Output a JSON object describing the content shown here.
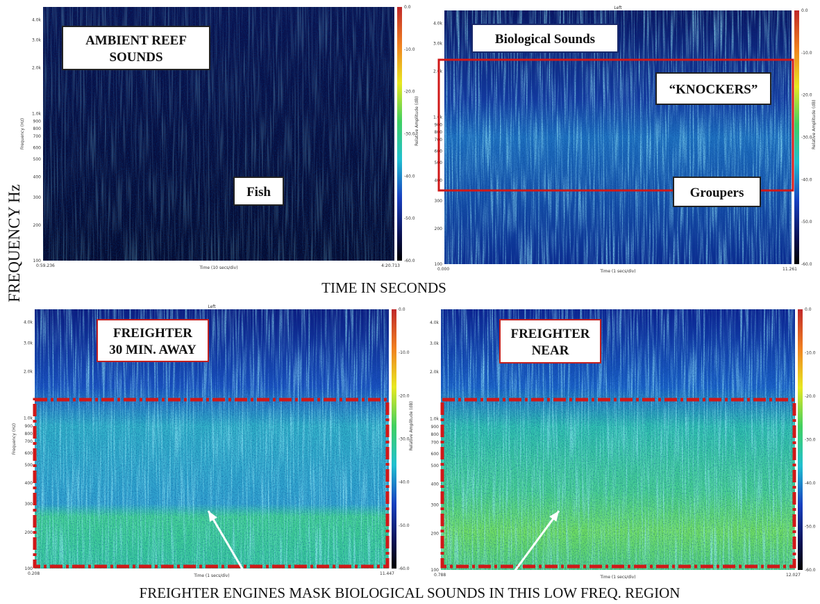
{
  "y_axis_label": "FREQUENCY  Hz",
  "middle_label": "TIME IN SECONDS",
  "bottom_label": "FREIGHTER ENGINES MASK BIOLOGICAL  SOUNDS IN THIS LOW FREQ. REGION",
  "panels": [
    {
      "frequency_axis_title": "Frequency (Hz)",
      "frequency_ticks": [
        "4.0k",
        "3.0k",
        "2.0k",
        "1.0k",
        "900",
        "800",
        "700",
        "600",
        "500",
        "400",
        "300",
        "200",
        "100"
      ],
      "time_axis_title": "Time (10 secs/div)",
      "time_start": "0:59.236",
      "time_end": "4:20.713",
      "amplitude_axis_title": "Relative Amplitude (dB)",
      "amplitude_ticks": [
        "0.0",
        "-10.0",
        "-20.0",
        "-30.0",
        "-40.0",
        "-50.0",
        "-60.0"
      ],
      "annotations": [
        {
          "lines": [
            "AMBIENT REEF",
            "SOUNDS"
          ]
        },
        {
          "lines": [
            "Fish"
          ]
        }
      ]
    },
    {
      "header": "Left",
      "frequency_ticks": [
        "4.0k",
        "3.0k",
        "2.0k",
        "1.0k",
        "900",
        "800",
        "700",
        "600",
        "500",
        "400",
        "300",
        "200",
        "100"
      ],
      "time_axis_title": "Time (1 secs/div)",
      "time_start": "0.000",
      "time_end": "11.261",
      "amplitude_axis_title": "Relative Amplitude (dB)",
      "amplitude_ticks": [
        "0.0",
        "-10.0",
        "-20.0",
        "-30.0",
        "-40.0",
        "-50.0",
        "-60.0"
      ],
      "annotations": [
        {
          "lines": [
            "Biological Sounds"
          ]
        },
        {
          "lines": [
            "“KNOCKERS”"
          ]
        },
        {
          "lines": [
            "Groupers"
          ]
        }
      ]
    },
    {
      "header": "Left",
      "frequency_axis_title": "Frequency (Hz)",
      "frequency_ticks": [
        "4.0k",
        "3.0k",
        "2.0k",
        "1.0k",
        "900",
        "800",
        "700",
        "600",
        "500",
        "400",
        "300",
        "200",
        "100"
      ],
      "time_axis_title": "Time (1 secs/div)",
      "time_start": "0.208",
      "time_end": "11.447",
      "amplitude_axis_title": "Relative Amplitude (dB)",
      "amplitude_ticks": [
        "0.0",
        "-10.0",
        "-20.0",
        "-30.0",
        "-40.0",
        "-50.0",
        "-60.0"
      ],
      "annotations": [
        {
          "lines": [
            "FREIGHTER",
            "30 MIN. AWAY"
          ]
        }
      ]
    },
    {
      "frequency_ticks": [
        "4.0k",
        "3.0k",
        "2.0k",
        "1.0k",
        "900",
        "800",
        "700",
        "600",
        "500",
        "400",
        "300",
        "200",
        "100"
      ],
      "time_axis_title": "Time (1 secs/div)",
      "time_start": "0.788",
      "time_end": "12.027",
      "amplitude_ticks": [
        "0.0",
        "-10.0",
        "-20.0",
        "-30.0",
        "-40.0",
        "-50.0",
        "-60.0"
      ],
      "annotations": [
        {
          "lines": [
            "FREIGHTER",
            "NEAR"
          ]
        }
      ]
    }
  ]
}
